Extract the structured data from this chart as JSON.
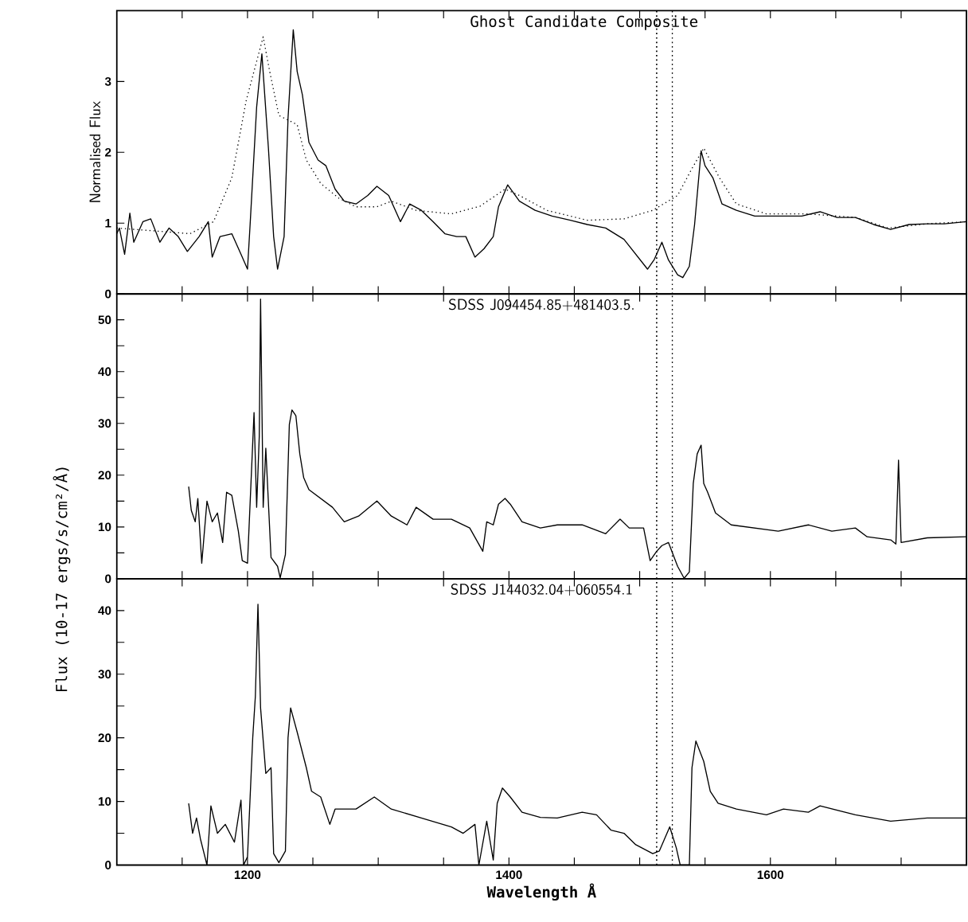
{
  "chart_data": [
    {
      "type": "line",
      "title": "Ghost Candidate Composite",
      "ylabel": "Normalised Flux",
      "xlim": [
        1100,
        1750
      ],
      "ylim": [
        0,
        4
      ],
      "yticks": [
        0,
        1,
        2,
        3
      ],
      "xticks": [
        {
          "value": 1150,
          "label": null
        },
        {
          "value": 1200,
          "label": null
        },
        {
          "value": 1250,
          "label": null
        },
        {
          "value": 1300,
          "label": null
        },
        {
          "value": 1350,
          "label": null
        },
        {
          "value": 1400,
          "label": null
        },
        {
          "value": 1450,
          "label": null
        },
        {
          "value": 1500,
          "label": null
        },
        {
          "value": 1550,
          "label": null
        },
        {
          "value": 1600,
          "label": null
        },
        {
          "value": 1650,
          "label": null
        },
        {
          "value": 1700,
          "label": null
        }
      ],
      "tick_labels": "y",
      "marker": "none",
      "series": [
        {
          "color": "#000000",
          "line_style": "solid",
          "x": [
            1100,
            1102,
            1106,
            1110,
            1113,
            1120,
            1126,
            1133,
            1140,
            1147,
            1154,
            1163,
            1170,
            1173,
            1179,
            1188,
            1195,
            1200,
            1202,
            1207,
            1211,
            1216,
            1220,
            1223,
            1228,
            1231,
            1235,
            1238,
            1242,
            1247,
            1254,
            1260,
            1267,
            1274,
            1283,
            1292,
            1299,
            1308,
            1317,
            1324,
            1333,
            1342,
            1351,
            1360,
            1367,
            1374,
            1381,
            1388,
            1392,
            1399,
            1408,
            1420,
            1433,
            1447,
            1460,
            1474,
            1488,
            1497,
            1506,
            1511,
            1517,
            1522,
            1529,
            1533,
            1538,
            1542,
            1547,
            1550,
            1556,
            1563,
            1574,
            1588,
            1610,
            1624,
            1638,
            1651,
            1665,
            1679,
            1692,
            1706,
            1720,
            1733,
            1750
          ],
          "values": [
            0.85,
            0.93,
            0.56,
            1.14,
            0.73,
            1.02,
            1.06,
            0.73,
            0.93,
            0.81,
            0.6,
            0.81,
            1.02,
            0.52,
            0.81,
            0.85,
            0.56,
            0.35,
            0.98,
            2.64,
            3.39,
            2.06,
            0.81,
            0.35,
            0.81,
            2.48,
            3.73,
            3.14,
            2.81,
            2.14,
            1.89,
            1.81,
            1.48,
            1.31,
            1.27,
            1.39,
            1.52,
            1.39,
            1.02,
            1.27,
            1.18,
            1.02,
            0.85,
            0.81,
            0.81,
            0.52,
            0.64,
            0.81,
            1.23,
            1.54,
            1.31,
            1.18,
            1.1,
            1.04,
            0.98,
            0.93,
            0.77,
            0.56,
            0.35,
            0.48,
            0.73,
            0.48,
            0.27,
            0.23,
            0.39,
            0.98,
            2.02,
            1.81,
            1.64,
            1.27,
            1.18,
            1.1,
            1.1,
            1.1,
            1.16,
            1.08,
            1.08,
            0.98,
            0.91,
            0.98,
            0.99,
            0.99,
            1.02
          ]
        },
        {
          "color": "#000000",
          "line_style": "dotted",
          "x": [
            1100,
            1129,
            1156,
            1174,
            1188,
            1199,
            1212,
            1217,
            1224,
            1238,
            1245,
            1256,
            1270,
            1283,
            1299,
            1310,
            1329,
            1356,
            1378,
            1397,
            1408,
            1429,
            1460,
            1488,
            1510,
            1529,
            1540,
            1549,
            1561,
            1574,
            1597,
            1629,
            1665,
            1690,
            1720,
            1750
          ],
          "values": [
            0.93,
            0.89,
            0.85,
            1.02,
            1.64,
            2.73,
            3.63,
            3.14,
            2.52,
            2.39,
            1.89,
            1.56,
            1.35,
            1.23,
            1.23,
            1.31,
            1.18,
            1.13,
            1.24,
            1.48,
            1.39,
            1.18,
            1.04,
            1.06,
            1.18,
            1.39,
            1.77,
            2.06,
            1.64,
            1.27,
            1.13,
            1.13,
            1.08,
            0.93,
            0.99,
            1.02
          ]
        }
      ],
      "ref_lines": [
        {
          "axis": "x",
          "value": 1513,
          "color": "#000000",
          "line_style": "dotted"
        },
        {
          "axis": "x",
          "value": 1525,
          "color": "#000000",
          "line_style": "dotted"
        }
      ]
    },
    {
      "type": "line",
      "title": "SDSS J094454.85+481403.5.",
      "xlim": [
        1100,
        1750
      ],
      "ylim": [
        0,
        55
      ],
      "yticks": [
        0,
        {
          "value": 5,
          "label": null
        },
        10,
        {
          "value": 15,
          "label": null
        },
        20,
        {
          "value": 25,
          "label": null
        },
        30,
        {
          "value": 35,
          "label": null
        },
        40,
        {
          "value": 45,
          "label": null
        },
        50
      ],
      "xticks": [
        {
          "value": 1150,
          "label": null
        },
        {
          "value": 1200,
          "label": null
        },
        {
          "value": 1250,
          "label": null
        },
        {
          "value": 1300,
          "label": null
        },
        {
          "value": 1350,
          "label": null
        },
        {
          "value": 1400,
          "label": null
        },
        {
          "value": 1450,
          "label": null
        },
        {
          "value": 1500,
          "label": null
        },
        {
          "value": 1550,
          "label": null
        },
        {
          "value": 1600,
          "label": null
        },
        {
          "value": 1650,
          "label": null
        },
        {
          "value": 1700,
          "label": null
        }
      ],
      "tick_labels": "y",
      "marker": "none",
      "series": [
        {
          "color": "#000000",
          "line_style": "solid",
          "x": [
            1155,
            1157,
            1160,
            1162,
            1165,
            1169,
            1173,
            1177,
            1181,
            1184,
            1188,
            1193,
            1196,
            1200,
            1205,
            1207,
            1209,
            1210,
            1212,
            1214,
            1218,
            1223,
            1225,
            1229,
            1232,
            1234,
            1237,
            1240,
            1243,
            1247,
            1256,
            1265,
            1274,
            1285,
            1299,
            1310,
            1322,
            1329,
            1342,
            1356,
            1370,
            1380,
            1383,
            1388,
            1392,
            1397,
            1401,
            1410,
            1424,
            1437,
            1456,
            1474,
            1485,
            1492,
            1503,
            1508,
            1513,
            1517,
            1522,
            1529,
            1534,
            1538,
            1541,
            1544,
            1547,
            1549,
            1552,
            1558,
            1570,
            1588,
            1606,
            1629,
            1647,
            1665,
            1674,
            1692,
            1696,
            1698,
            1700,
            1720,
            1750
          ],
          "values": [
            17.8,
            13.2,
            11.0,
            15.5,
            3.0,
            15.0,
            11.0,
            12.7,
            7.0,
            16.7,
            16.1,
            9.2,
            3.5,
            3.0,
            32.1,
            13.8,
            27.5,
            54.0,
            13.8,
            25.2,
            4.1,
            2.4,
            0.2,
            4.7,
            29.8,
            32.6,
            31.5,
            24.1,
            19.5,
            17.2,
            15.5,
            13.8,
            11.0,
            12.1,
            15.0,
            12.1,
            10.4,
            13.8,
            11.5,
            11.5,
            9.8,
            5.3,
            11.0,
            10.4,
            14.4,
            15.5,
            14.4,
            11.0,
            9.8,
            10.4,
            10.4,
            8.7,
            11.5,
            9.8,
            9.8,
            3.5,
            5.3,
            6.4,
            7.0,
            2.4,
            0.1,
            1.3,
            18.4,
            24.1,
            25.8,
            18.4,
            16.7,
            12.7,
            10.4,
            9.8,
            9.2,
            10.4,
            9.2,
            9.8,
            8.1,
            7.5,
            6.7,
            22.9,
            7.0,
            7.9,
            8.1
          ]
        }
      ],
      "ref_lines": [
        {
          "axis": "x",
          "value": 1513,
          "color": "#000000",
          "line_style": "dotted"
        },
        {
          "axis": "x",
          "value": 1525,
          "color": "#000000",
          "line_style": "dotted"
        }
      ]
    },
    {
      "type": "line",
      "title": "SDSS J144032.04+060554.1",
      "xlabel": "Wavelength Å",
      "ylabel": "Flux (10-17 ergs/s/cm²/Å)",
      "xlim": [
        1100,
        1750
      ],
      "ylim": [
        0,
        45
      ],
      "yticks": [
        0,
        {
          "value": 5,
          "label": null
        },
        10,
        {
          "value": 15,
          "label": null
        },
        20,
        {
          "value": 25,
          "label": null
        },
        30,
        {
          "value": 35,
          "label": null
        },
        40
      ],
      "xticks": [
        {
          "value": 1150,
          "label": null
        },
        1200,
        {
          "value": 1250,
          "label": null
        },
        {
          "value": 1300,
          "label": null
        },
        {
          "value": 1350,
          "label": null
        },
        1400,
        {
          "value": 1450,
          "label": null
        },
        {
          "value": 1500,
          "label": null
        },
        {
          "value": 1550,
          "label": null
        },
        1600,
        {
          "value": 1650,
          "label": null
        },
        {
          "value": 1700,
          "label": null
        }
      ],
      "marker": "none",
      "series": [
        {
          "color": "#000000",
          "line_style": "solid",
          "x": [
            1155,
            1158,
            1161,
            1164,
            1169,
            1172,
            1177,
            1183,
            1190,
            1195,
            1197,
            1200,
            1204,
            1206,
            1208,
            1210,
            1214,
            1218,
            1220,
            1224,
            1229,
            1231,
            1233,
            1238,
            1245,
            1249,
            1256,
            1263,
            1267,
            1283,
            1297,
            1310,
            1333,
            1356,
            1365,
            1374,
            1377,
            1383,
            1388,
            1391,
            1395,
            1401,
            1410,
            1424,
            1437,
            1456,
            1467,
            1478,
            1488,
            1497,
            1510,
            1515,
            1523,
            1528,
            1531,
            1538,
            1540,
            1543,
            1549,
            1554,
            1560,
            1574,
            1597,
            1610,
            1629,
            1638,
            1665,
            1692,
            1720,
            1750
          ],
          "values": [
            9.7,
            5.0,
            7.4,
            4.1,
            0,
            9.3,
            5.0,
            6.4,
            3.6,
            10.2,
            0,
            1.3,
            20.0,
            26.5,
            41.0,
            24.7,
            14.4,
            15.3,
            1.8,
            0.4,
            2.2,
            20.0,
            24.7,
            20.9,
            15.3,
            11.6,
            10.7,
            6.4,
            8.8,
            8.8,
            10.7,
            8.8,
            7.4,
            6.0,
            5.0,
            6.4,
            0,
            6.9,
            0.8,
            9.7,
            12.1,
            10.7,
            8.3,
            7.5,
            7.4,
            8.3,
            7.9,
            5.5,
            5.0,
            3.2,
            1.8,
            2.2,
            6.0,
            2.7,
            0,
            0,
            15.3,
            19.5,
            16.3,
            11.6,
            9.7,
            8.8,
            7.9,
            8.8,
            8.3,
            9.3,
            7.9,
            6.9,
            7.4,
            7.4
          ]
        }
      ],
      "ref_lines": [
        {
          "axis": "x",
          "value": 1513,
          "color": "#000000",
          "line_style": "dotted"
        },
        {
          "axis": "x",
          "value": 1525,
          "color": "#000000",
          "line_style": "dotted"
        }
      ]
    }
  ]
}
